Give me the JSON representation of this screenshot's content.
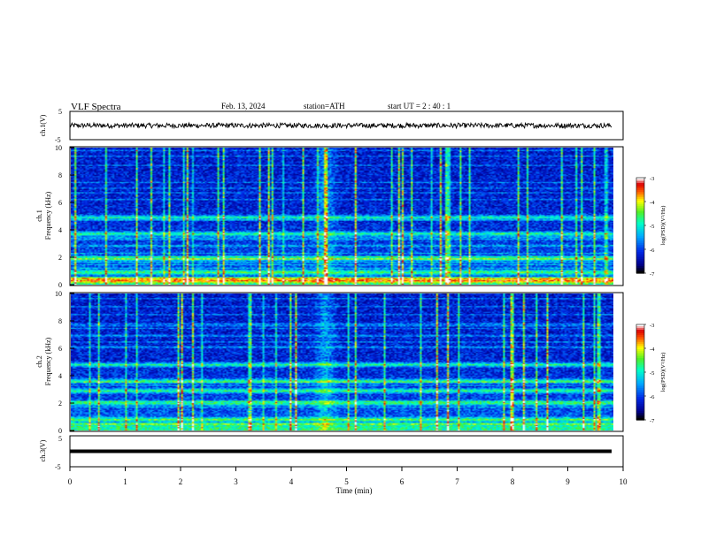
{
  "header": {
    "title": "VLF  Spectra",
    "date": "Feb. 13, 2024",
    "station": "station=ATH",
    "start": "start  UT  =   2 : 40 : 1"
  },
  "chart_data": [
    {
      "type": "line",
      "ylabel": "ch.1(V)",
      "ylim": [
        -5,
        5
      ],
      "yticks": [
        "5",
        "-5"
      ],
      "x_range": [
        0,
        9.8
      ],
      "baseline": 0,
      "amplitude": 0.4,
      "color": "#000000"
    },
    {
      "type": "heatmap",
      "ylabel": "ch.1\nFrequency  (kHz)",
      "ylim": [
        0,
        10
      ],
      "yticks": [
        "10",
        "8",
        "6",
        "4",
        "2",
        "0"
      ],
      "x_range": [
        0,
        9.8
      ],
      "colorbar": {
        "label": "log(PSD)(V²/Hz)",
        "ticks": [
          "-3",
          "-4",
          "-5",
          "-6",
          "-7"
        ],
        "range": [
          -7,
          -3
        ]
      },
      "strong_bands_khz": [
        0.3,
        0.9,
        1.9,
        3.7,
        4.9
      ],
      "burst_center_min": 4.6
    },
    {
      "type": "heatmap",
      "ylabel": "ch.2\nFrequency  (kHz)",
      "ylim": [
        0,
        10
      ],
      "yticks": [
        "10",
        "8",
        "6",
        "4",
        "2",
        "0"
      ],
      "x_range": [
        0,
        9.8
      ],
      "colorbar": {
        "label": "log(PSD)(V²/Hz)",
        "ticks": [
          "-3",
          "-4",
          "-5",
          "-6",
          "-7"
        ],
        "range": [
          -7,
          -3
        ]
      },
      "strong_bands_khz": [
        0.8,
        2.0,
        2.9,
        3.6,
        4.8
      ],
      "burst_center_min": 4.6
    },
    {
      "type": "line",
      "ylabel": "ch.3(V)",
      "ylim": [
        -5,
        5
      ],
      "yticks": [
        "5",
        "-5"
      ],
      "x_range": [
        0,
        9.8
      ],
      "baseline": 0,
      "amplitude": 0,
      "color": "#000000"
    }
  ],
  "x_axis": {
    "label": "Time  (min)",
    "ticks": [
      "0",
      "1",
      "2",
      "3",
      "4",
      "5",
      "6",
      "7",
      "8",
      "9",
      "10"
    ],
    "range": [
      0,
      10
    ]
  }
}
